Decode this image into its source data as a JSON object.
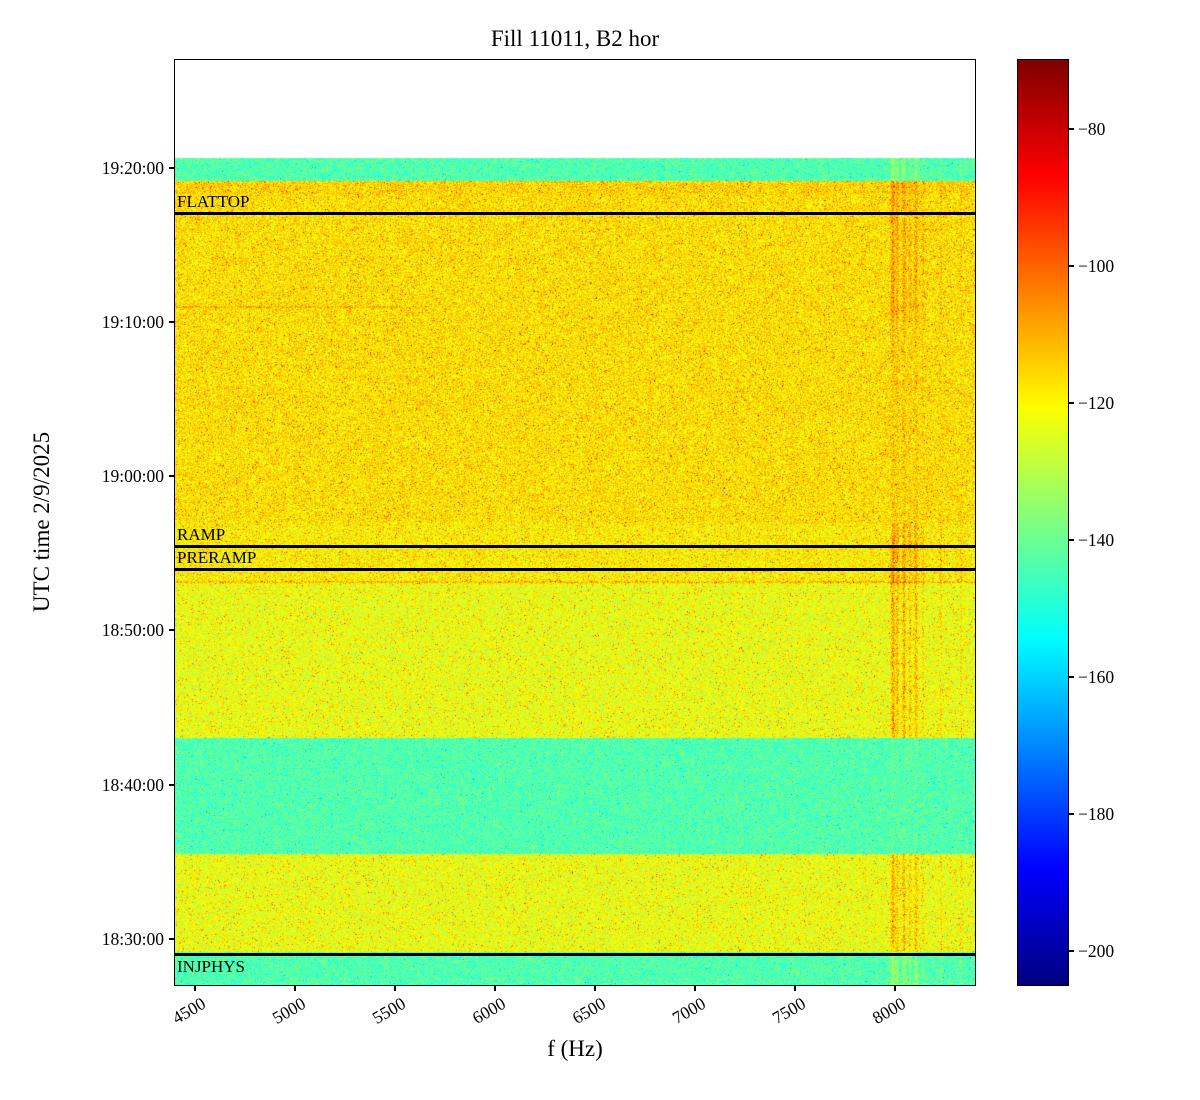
{
  "chart_data": {
    "type": "heatmap",
    "variant": "spectrogram",
    "title": "Fill 11011, B2 hor",
    "xlabel": "f (Hz)",
    "ylabel": "UTC time 2/9/2025",
    "x_range": [
      4400,
      8400
    ],
    "x_ticks": [
      4500,
      5000,
      5500,
      6000,
      6500,
      7000,
      7500,
      8000
    ],
    "y_range": [
      "18:27:00",
      "19:27:00"
    ],
    "y_ticks": [
      "19:20:00",
      "19:10:00",
      "19:00:00",
      "18:50:00",
      "18:40:00",
      "18:30:00"
    ],
    "data_top": "19:20:40",
    "colorbar": {
      "colormap": "jet",
      "min": -205,
      "max": -70,
      "ticks": [
        -80,
        -100,
        -120,
        -140,
        -160,
        -180,
        -200
      ]
    },
    "background_color": "#ffffff",
    "annotation_color": "#000000",
    "seed": 7,
    "noise_spread": 9,
    "bands": [
      {
        "start": "18:27:00",
        "end": "18:29:10",
        "level": -144
      },
      {
        "start": "18:29:10",
        "end": "18:35:30",
        "level": -123
      },
      {
        "start": "18:35:30",
        "end": "18:43:00",
        "level": -144
      },
      {
        "start": "18:43:00",
        "end": "18:53:00",
        "level": -123
      },
      {
        "start": "18:53:00",
        "end": "18:57:00",
        "level": -119
      },
      {
        "start": "18:57:00",
        "end": "19:18:20",
        "level": -117
      },
      {
        "start": "19:18:20",
        "end": "19:19:10",
        "level": -115
      },
      {
        "start": "19:19:10",
        "end": "19:20:40",
        "level": -144
      }
    ],
    "annotations": [
      {
        "label": "FLATTOP",
        "time": "19:17:05",
        "label_position": "above"
      },
      {
        "label": "RAMP",
        "time": "18:55:30",
        "label_position": "above"
      },
      {
        "label": "PRERAMP",
        "time": "18:54:00",
        "label_position": "above"
      },
      {
        "label": "INJPHYS",
        "time": "18:29:00",
        "label_position": "below"
      }
    ],
    "vertical_streaks": [
      {
        "f": 7990,
        "sigma": 10,
        "boost": 17
      },
      {
        "f": 8012,
        "sigma": 7,
        "boost": 13
      },
      {
        "f": 8045,
        "sigma": 9,
        "boost": 15
      },
      {
        "f": 8075,
        "sigma": 7,
        "boost": 11
      },
      {
        "f": 8105,
        "sigma": 9,
        "boost": 13
      },
      {
        "f": 8140,
        "sigma": 5,
        "boost": 8
      },
      {
        "f": 8230,
        "sigma": 4,
        "boost": 9
      },
      {
        "f": 8330,
        "sigma": 4,
        "boost": 7
      }
    ],
    "streak_time_factors": [
      {
        "start": "18:27:00",
        "end": "18:35:30",
        "factor": 1.0
      },
      {
        "start": "18:35:30",
        "end": "18:43:00",
        "factor": 0.2
      },
      {
        "start": "18:43:00",
        "end": "18:57:00",
        "factor": 1.2
      },
      {
        "start": "18:57:00",
        "end": "19:10:00",
        "factor": 0.35
      },
      {
        "start": "19:10:00",
        "end": "19:20:40",
        "factor": 0.85
      }
    ],
    "horizontal_lines": [
      {
        "time": "18:53:10",
        "f_start": 4400,
        "f_end": 8400,
        "boost": 10,
        "rows": 2
      },
      {
        "time": "18:52:25",
        "f_start": 4500,
        "f_end": 8400,
        "boost": 6,
        "rows": 1
      },
      {
        "time": "19:11:00",
        "f_start": 4400,
        "f_end": 5600,
        "boost": 9,
        "rows": 2
      }
    ]
  }
}
